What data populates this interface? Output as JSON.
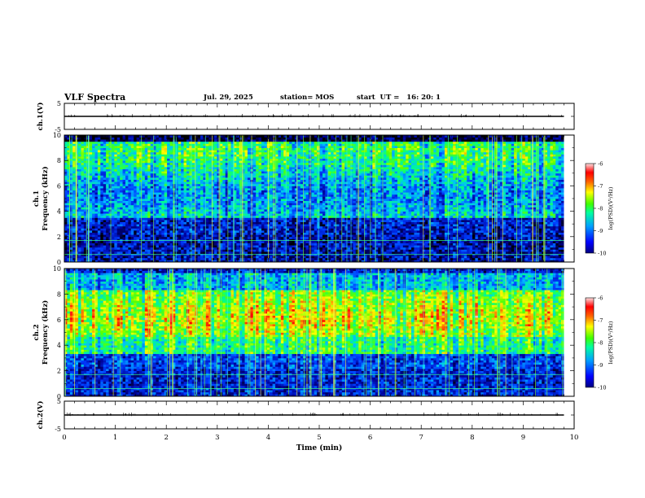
{
  "header": {
    "title": "VLF Spectra",
    "date": "Jul. 29, 2025",
    "station": "station= MOS",
    "start": "start  UT =   16: 20: 1"
  },
  "chart_data": {
    "type": "heatmap",
    "xlabel": "Time (min)",
    "xlim": [
      0,
      10
    ],
    "x_ticks": [
      "0",
      "1",
      "2",
      "3",
      "4",
      "5",
      "6",
      "7",
      "8",
      "9",
      "10"
    ],
    "panels": [
      {
        "id": "ch1-waveform",
        "type": "line",
        "ylabel": "ch.1(V)",
        "ylim": [
          -5,
          5
        ],
        "y_ticks": [
          "5",
          "-5"
        ],
        "level": 0,
        "data_end_min": 9.8
      },
      {
        "id": "ch1-spectrogram",
        "type": "heatmap",
        "ylabel_top": "ch.1",
        "ylabel": "Frequency (kHz)",
        "ylim": [
          0,
          10
        ],
        "y_ticks": [
          "0",
          "2",
          "4",
          "6",
          "8",
          "10"
        ],
        "dominant_band_khz": [
          3.5,
          9.5
        ],
        "colorbar": {
          "label": "log(PSD)(V²/Hz)",
          "range": [
            -10,
            -6
          ],
          "ticks": [
            "-6",
            "-7",
            "-8",
            "-9",
            "-10"
          ]
        }
      },
      {
        "id": "ch2-spectrogram",
        "type": "heatmap",
        "ylabel_top": "ch.2",
        "ylabel": "Frequency (kHz)",
        "ylim": [
          0,
          10
        ],
        "y_ticks": [
          "0",
          "2",
          "4",
          "6",
          "8",
          "10"
        ],
        "dominant_band_khz": [
          4.5,
          7.5
        ],
        "colorbar": {
          "label": "log(PSD)(V²/Hz)",
          "range": [
            -10,
            -6
          ],
          "ticks": [
            "-6",
            "-7",
            "-8",
            "-9",
            "-10"
          ]
        }
      },
      {
        "id": "ch2-waveform",
        "type": "line",
        "ylabel": "ch.2(V)",
        "ylim": [
          -5,
          5
        ],
        "y_ticks": [
          "5",
          "-5"
        ],
        "level": 0,
        "data_end_min": 9.8
      }
    ],
    "colorscale": [
      "#000000",
      "#0000b0",
      "#0040ff",
      "#00c0ff",
      "#00ff80",
      "#80ff00",
      "#ffff00",
      "#ff8000",
      "#ff0000",
      "#ffb0b0",
      "#ffffff"
    ]
  }
}
